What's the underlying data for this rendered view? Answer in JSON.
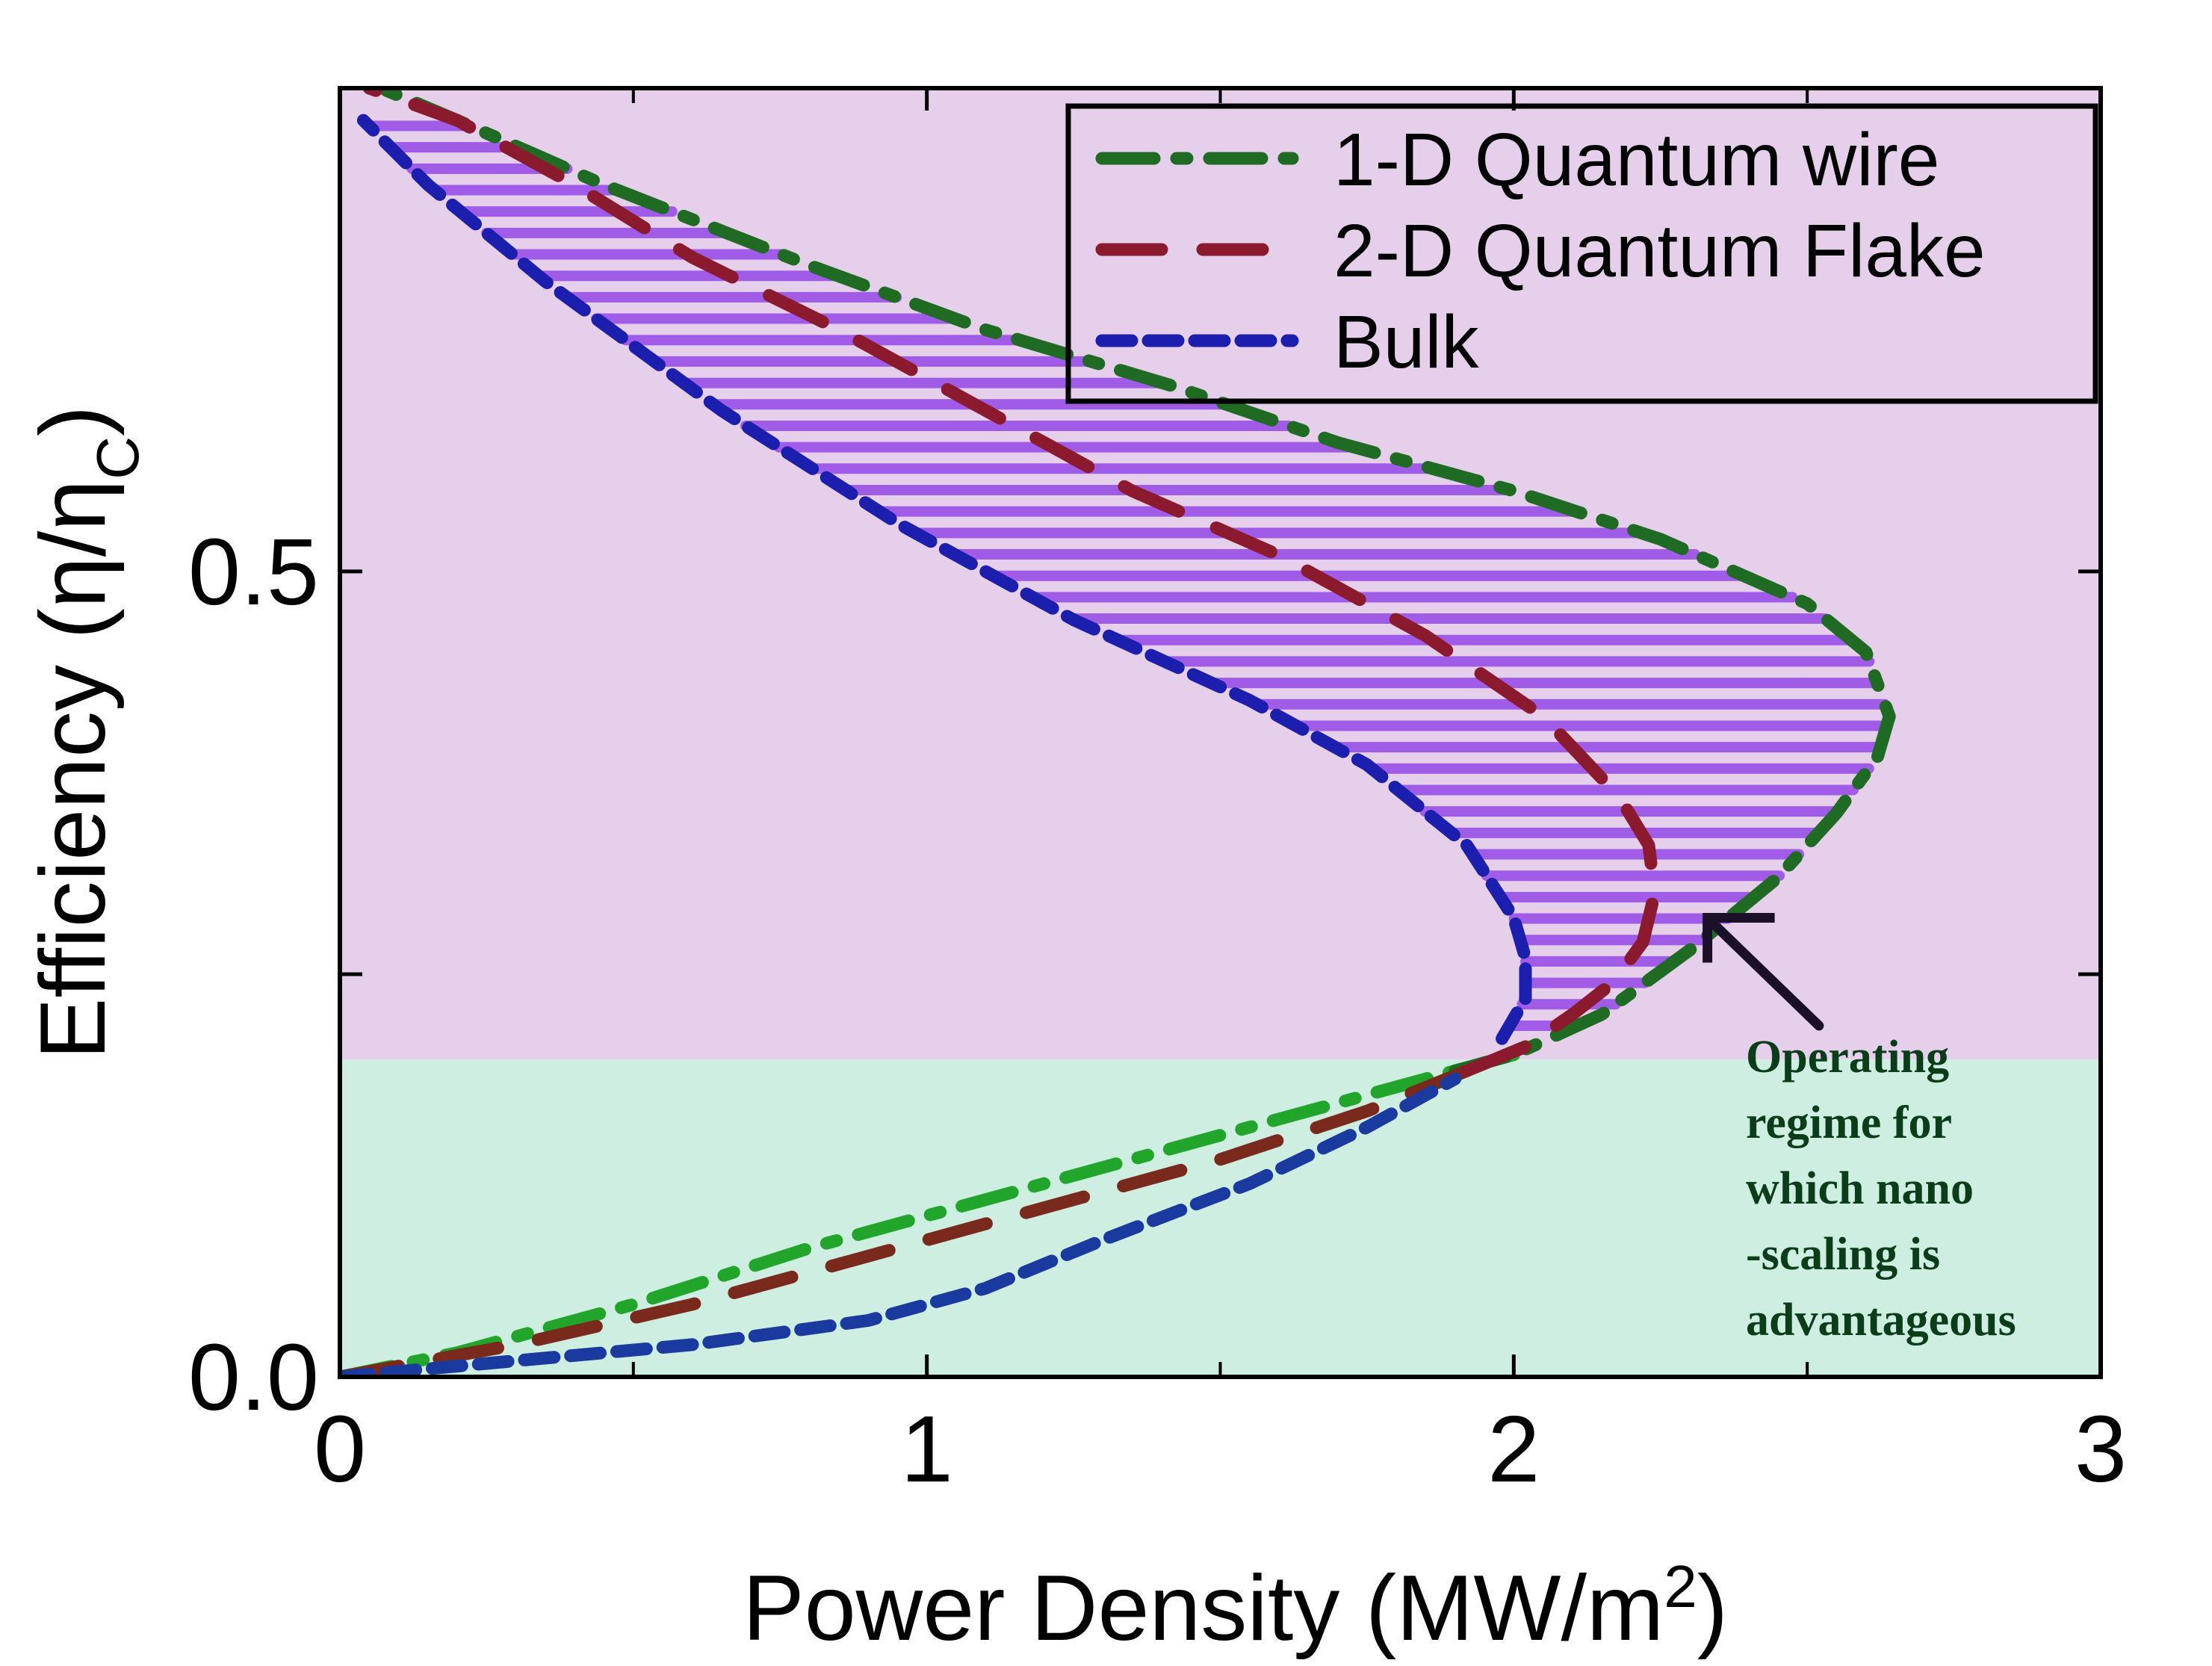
{
  "chart_data": {
    "type": "line",
    "title": "",
    "xlabel": "Power Density (MW/m",
    "xlabel_sup": "2",
    "xlabel_close": ")",
    "ylabel": "Efficiency (η/η",
    "ylabel_sub": "C",
    "ylabel_close": ")",
    "xlim": [
      0,
      3
    ],
    "ylim": [
      0,
      0.8
    ],
    "xticks": [
      0,
      1,
      2,
      3
    ],
    "xtick_labels": [
      "0",
      "1",
      "2",
      "3"
    ],
    "yticks": [
      0.0,
      0.5
    ],
    "ytick_labels": [
      "0.0",
      "0.5"
    ],
    "minor_yticks": [
      0.25
    ],
    "minor_xticks": [
      0.5,
      1.5,
      2.5
    ],
    "grid": false,
    "legend_position": "top-right",
    "regions": [
      {
        "name": "upper-regime",
        "y_from": 0.197,
        "y_to": 0.8,
        "color": "#e6cfeb"
      },
      {
        "name": "lower-regime",
        "y_from": 0.0,
        "y_to": 0.197,
        "color": "#cdeee0"
      }
    ],
    "hatch_color": "#a05ce6",
    "series": [
      {
        "name": "1-D Quantum wire",
        "color": "#1f6b23",
        "color_low": "#21a52a",
        "dash": "dashdot",
        "x": [
          0.0,
          0.2,
          0.5,
          0.8,
          1.1,
          1.4,
          1.7,
          1.9,
          2.0,
          2.15,
          2.3,
          2.45,
          2.55,
          2.62,
          2.64,
          2.6,
          2.5,
          2.25,
          2.0,
          1.7,
          1.42,
          1.1,
          0.8,
          0.45,
          0.2,
          0.07
        ],
        "y": [
          0.0,
          0.015,
          0.045,
          0.08,
          0.11,
          0.14,
          0.17,
          0.19,
          0.2,
          0.225,
          0.265,
          0.31,
          0.35,
          0.385,
          0.41,
          0.45,
          0.48,
          0.52,
          0.55,
          0.58,
          0.615,
          0.65,
          0.69,
          0.74,
          0.78,
          0.8
        ]
      },
      {
        "name": "2-D Quantum Flake",
        "color": "#8b1a2f",
        "color_low": "#7a2a1d",
        "dash": "dashed",
        "x": [
          0.0,
          0.3,
          0.6,
          0.9,
          1.2,
          1.5,
          1.75,
          1.92,
          2.02,
          2.1,
          2.17,
          2.22,
          2.24,
          2.23,
          2.18,
          2.05,
          1.85,
          1.6,
          1.35,
          1.1,
          0.85,
          0.6,
          0.4,
          0.2,
          0.05
        ],
        "y": [
          0.0,
          0.02,
          0.045,
          0.075,
          0.105,
          0.135,
          0.165,
          0.19,
          0.205,
          0.225,
          0.245,
          0.27,
          0.3,
          0.33,
          0.36,
          0.41,
          0.46,
          0.51,
          0.55,
          0.6,
          0.65,
          0.695,
          0.74,
          0.78,
          0.8
        ]
      },
      {
        "name": "Bulk",
        "color": "#1c1fae",
        "color_low": "#1a3aa0",
        "dash": "dotted",
        "x": [
          0.0,
          0.3,
          0.6,
          0.9,
          1.1,
          1.3,
          1.55,
          1.75,
          1.9,
          1.98,
          2.02,
          2.02,
          2.0,
          1.92,
          1.75,
          1.55,
          1.25,
          0.95,
          0.65,
          0.35,
          0.15,
          0.04
        ],
        "y": [
          0.0,
          0.01,
          0.02,
          0.035,
          0.055,
          0.085,
          0.12,
          0.155,
          0.185,
          0.21,
          0.235,
          0.26,
          0.285,
          0.33,
          0.38,
          0.42,
          0.47,
          0.53,
          0.6,
          0.68,
          0.74,
          0.78
        ]
      }
    ],
    "legend": [
      {
        "label": "1-D Quantum wire",
        "series": "1-D Quantum wire"
      },
      {
        "label": "2-D Quantum Flake",
        "series": "2-D Quantum Flake"
      },
      {
        "label": "Bulk",
        "series": "Bulk"
      }
    ],
    "annotation": {
      "lines": [
        "Operating",
        "regime for",
        "which nano",
        "-scaling is",
        "advantageous"
      ],
      "arrow_from": [
        2.52,
        0.218
      ],
      "arrow_to": [
        2.33,
        0.285
      ]
    }
  }
}
